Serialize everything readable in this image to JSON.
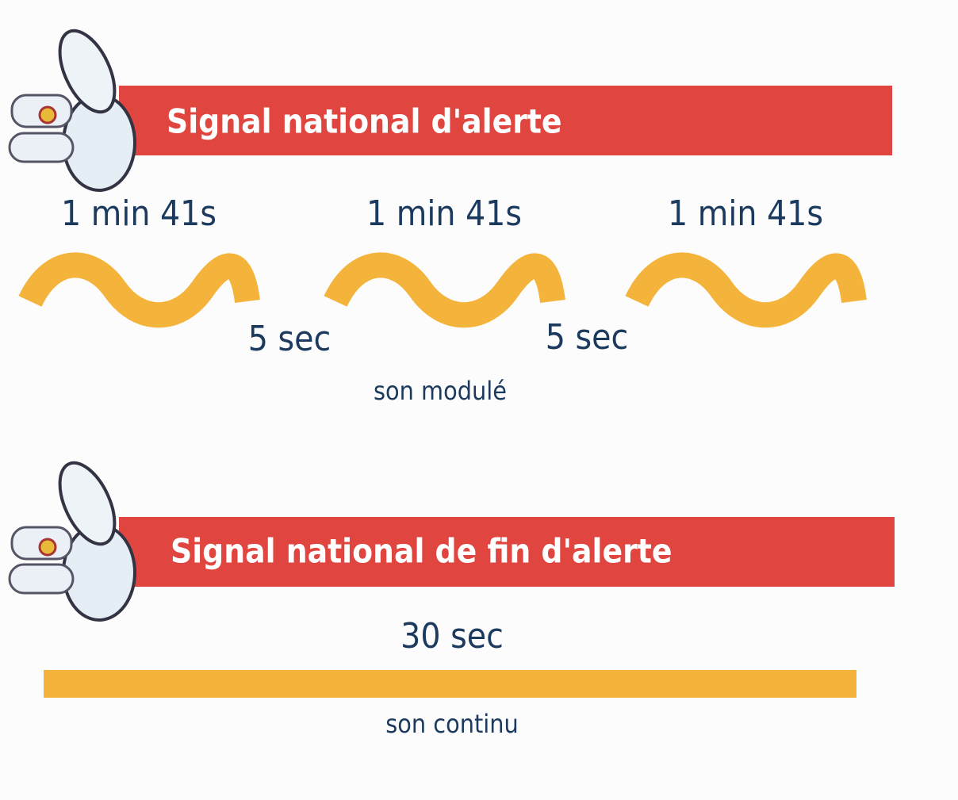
{
  "alert": {
    "title": "Signal national d'alerte",
    "durations": [
      "1 min 41s",
      "1 min 41s",
      "1 min 41s"
    ],
    "pauses": [
      "5 sec",
      "5 sec"
    ],
    "sound": "son modulé"
  },
  "end_alert": {
    "title": "Signal national de fin d'alerte",
    "duration": "30 sec",
    "sound": "son continu"
  }
}
